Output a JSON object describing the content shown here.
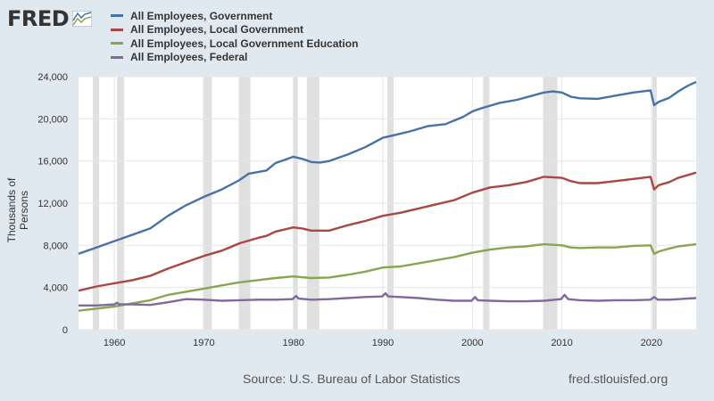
{
  "logo": {
    "text": "FRED",
    "icon": "fred-trend-icon"
  },
  "chart_data": {
    "type": "line",
    "ylabel": "Thousands of Persons",
    "xlim": [
      1956,
      2025
    ],
    "ylim": [
      0,
      24000
    ],
    "yticks": [
      0,
      4000,
      8000,
      12000,
      16000,
      20000,
      24000
    ],
    "ytick_labels": [
      "0",
      "4,000",
      "8,000",
      "12,000",
      "16,000",
      "20,000",
      "24,000"
    ],
    "xticks": [
      1960,
      1970,
      1980,
      1990,
      2000,
      2010,
      2020
    ],
    "xtick_labels": [
      "1960",
      "1970",
      "1980",
      "1990",
      "2000",
      "2010",
      "2020"
    ],
    "grid": true,
    "legend_position": "top-left",
    "recessions": [
      [
        1957.6,
        1958.3
      ],
      [
        1960.3,
        1961.1
      ],
      [
        1969.9,
        1970.9
      ],
      [
        1973.9,
        1975.2
      ],
      [
        1980.0,
        1980.5
      ],
      [
        1981.5,
        1982.9
      ],
      [
        1990.5,
        1991.2
      ],
      [
        2001.2,
        2001.9
      ],
      [
        2007.9,
        2009.5
      ],
      [
        2020.1,
        2020.4
      ]
    ],
    "series": [
      {
        "name": "All Employees, Government",
        "color": "#4572a7",
        "points": [
          [
            1956,
            7200
          ],
          [
            1958,
            7800
          ],
          [
            1960,
            8400
          ],
          [
            1962,
            9000
          ],
          [
            1964,
            9600
          ],
          [
            1966,
            10800
          ],
          [
            1968,
            11800
          ],
          [
            1970,
            12600
          ],
          [
            1972,
            13300
          ],
          [
            1974,
            14200
          ],
          [
            1975,
            14800
          ],
          [
            1977,
            15100
          ],
          [
            1978,
            15800
          ],
          [
            1979,
            16100
          ],
          [
            1980,
            16400
          ],
          [
            1981,
            16200
          ],
          [
            1982,
            15900
          ],
          [
            1983,
            15850
          ],
          [
            1984,
            16000
          ],
          [
            1986,
            16600
          ],
          [
            1988,
            17300
          ],
          [
            1990,
            18200
          ],
          [
            1991,
            18400
          ],
          [
            1993,
            18800
          ],
          [
            1995,
            19300
          ],
          [
            1997,
            19500
          ],
          [
            1999,
            20200
          ],
          [
            2000,
            20700
          ],
          [
            2001,
            21000
          ],
          [
            2003,
            21500
          ],
          [
            2005,
            21800
          ],
          [
            2008,
            22500
          ],
          [
            2009,
            22600
          ],
          [
            2010,
            22500
          ],
          [
            2011,
            22100
          ],
          [
            2012,
            21950
          ],
          [
            2014,
            21900
          ],
          [
            2016,
            22200
          ],
          [
            2018,
            22500
          ],
          [
            2019.9,
            22700
          ],
          [
            2020.3,
            21300
          ],
          [
            2020.8,
            21600
          ],
          [
            2022,
            22000
          ],
          [
            2023,
            22600
          ],
          [
            2024,
            23100
          ],
          [
            2025,
            23500
          ]
        ]
      },
      {
        "name": "All Employees, Local Government",
        "color": "#aa4643",
        "points": [
          [
            1956,
            3700
          ],
          [
            1958,
            4100
          ],
          [
            1960,
            4400
          ],
          [
            1962,
            4700
          ],
          [
            1964,
            5100
          ],
          [
            1966,
            5800
          ],
          [
            1968,
            6400
          ],
          [
            1970,
            7000
          ],
          [
            1972,
            7500
          ],
          [
            1974,
            8200
          ],
          [
            1976,
            8700
          ],
          [
            1977,
            8900
          ],
          [
            1978,
            9300
          ],
          [
            1980,
            9700
          ],
          [
            1981,
            9600
          ],
          [
            1982,
            9400
          ],
          [
            1984,
            9400
          ],
          [
            1986,
            9900
          ],
          [
            1988,
            10300
          ],
          [
            1990,
            10800
          ],
          [
            1992,
            11100
          ],
          [
            1994,
            11500
          ],
          [
            1996,
            11900
          ],
          [
            1998,
            12300
          ],
          [
            2000,
            13000
          ],
          [
            2002,
            13500
          ],
          [
            2004,
            13700
          ],
          [
            2006,
            14000
          ],
          [
            2008,
            14500
          ],
          [
            2010,
            14400
          ],
          [
            2011,
            14100
          ],
          [
            2012,
            13900
          ],
          [
            2014,
            13900
          ],
          [
            2016,
            14100
          ],
          [
            2018,
            14300
          ],
          [
            2019.9,
            14500
          ],
          [
            2020.3,
            13300
          ],
          [
            2020.8,
            13700
          ],
          [
            2022,
            14000
          ],
          [
            2023,
            14400
          ],
          [
            2025,
            14900
          ]
        ]
      },
      {
        "name": "All Employees, Local Government Education",
        "color": "#89a54e",
        "points": [
          [
            1956,
            1800
          ],
          [
            1958,
            2000
          ],
          [
            1960,
            2200
          ],
          [
            1962,
            2500
          ],
          [
            1964,
            2800
          ],
          [
            1966,
            3300
          ],
          [
            1968,
            3600
          ],
          [
            1970,
            3900
          ],
          [
            1972,
            4200
          ],
          [
            1974,
            4500
          ],
          [
            1976,
            4700
          ],
          [
            1978,
            4900
          ],
          [
            1980,
            5050
          ],
          [
            1982,
            4900
          ],
          [
            1984,
            4950
          ],
          [
            1986,
            5200
          ],
          [
            1988,
            5500
          ],
          [
            1990,
            5900
          ],
          [
            1992,
            6000
          ],
          [
            1994,
            6300
          ],
          [
            1996,
            6600
          ],
          [
            1998,
            6900
          ],
          [
            2000,
            7300
          ],
          [
            2002,
            7600
          ],
          [
            2004,
            7800
          ],
          [
            2006,
            7900
          ],
          [
            2008,
            8100
          ],
          [
            2010,
            8000
          ],
          [
            2011,
            7800
          ],
          [
            2012,
            7750
          ],
          [
            2014,
            7800
          ],
          [
            2016,
            7800
          ],
          [
            2018,
            7950
          ],
          [
            2019.9,
            8000
          ],
          [
            2020.3,
            7200
          ],
          [
            2020.8,
            7400
          ],
          [
            2022,
            7700
          ],
          [
            2023,
            7900
          ],
          [
            2025,
            8100
          ]
        ]
      },
      {
        "name": "All Employees, Federal",
        "color": "#80699b",
        "points": [
          [
            1956,
            2300
          ],
          [
            1958,
            2300
          ],
          [
            1960,
            2400
          ],
          [
            1960.3,
            2550
          ],
          [
            1960.6,
            2400
          ],
          [
            1962,
            2400
          ],
          [
            1964,
            2350
          ],
          [
            1966,
            2600
          ],
          [
            1968,
            2900
          ],
          [
            1970,
            2850
          ],
          [
            1972,
            2750
          ],
          [
            1974,
            2800
          ],
          [
            1976,
            2850
          ],
          [
            1978,
            2850
          ],
          [
            1979.9,
            2900
          ],
          [
            1980.3,
            3200
          ],
          [
            1980.6,
            2950
          ],
          [
            1982,
            2850
          ],
          [
            1984,
            2900
          ],
          [
            1986,
            3000
          ],
          [
            1988,
            3100
          ],
          [
            1989.9,
            3150
          ],
          [
            1990.3,
            3450
          ],
          [
            1990.6,
            3150
          ],
          [
            1992,
            3100
          ],
          [
            1994,
            3000
          ],
          [
            1996,
            2850
          ],
          [
            1998,
            2750
          ],
          [
            1999.9,
            2750
          ],
          [
            2000.3,
            3100
          ],
          [
            2000.6,
            2800
          ],
          [
            2002,
            2750
          ],
          [
            2004,
            2700
          ],
          [
            2006,
            2700
          ],
          [
            2008,
            2750
          ],
          [
            2009.9,
            2900
          ],
          [
            2010.3,
            3300
          ],
          [
            2010.7,
            2900
          ],
          [
            2012,
            2800
          ],
          [
            2014,
            2750
          ],
          [
            2016,
            2800
          ],
          [
            2018,
            2800
          ],
          [
            2019.9,
            2850
          ],
          [
            2020.3,
            3100
          ],
          [
            2020.7,
            2850
          ],
          [
            2022,
            2850
          ],
          [
            2024,
            2950
          ],
          [
            2025,
            3000
          ]
        ]
      }
    ]
  },
  "footer": {
    "source": "Source: U.S. Bureau of Labor Statistics",
    "url": "fred.stlouisfed.org"
  }
}
